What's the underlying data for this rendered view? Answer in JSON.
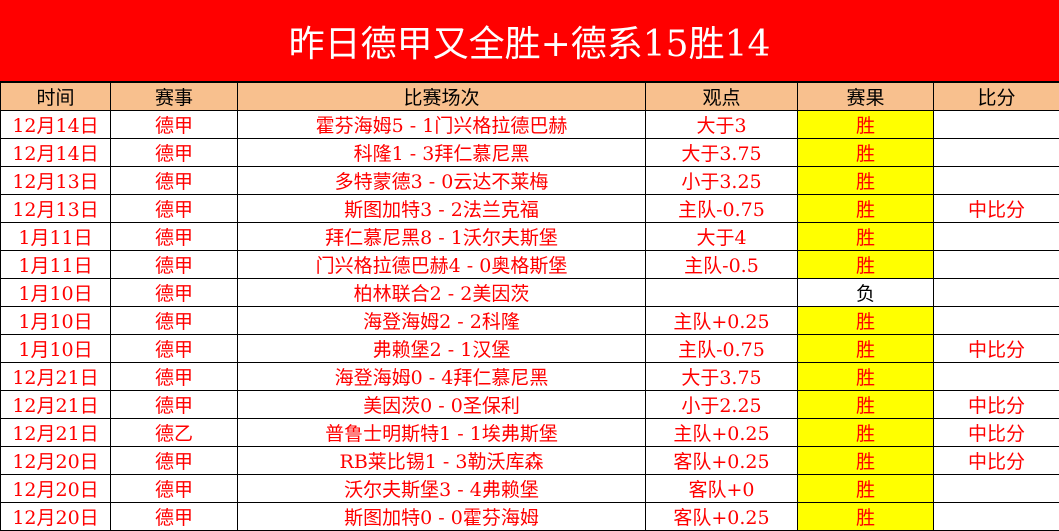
{
  "title": "昨日德甲又全胜+德系15胜14",
  "colors": {
    "title_bg": "#ff0000",
    "header_bg": "#f8c08e",
    "win_bg": "#ffff00",
    "text": "#ff0000"
  },
  "headers": [
    "时间",
    "赛事",
    "比赛场次",
    "观点",
    "赛果",
    "比分"
  ],
  "rows": [
    {
      "date": "12月14日",
      "league": "德甲",
      "match": "霍芬海姆5 - 1门兴格拉德巴赫",
      "tip": "大于3",
      "result": "胜",
      "score": ""
    },
    {
      "date": "12月14日",
      "league": "德甲",
      "match": "科隆1 - 3拜仁慕尼黑",
      "tip": "大于3.75",
      "result": "胜",
      "score": ""
    },
    {
      "date": "12月13日",
      "league": "德甲",
      "match": "多特蒙德3 - 0云达不莱梅",
      "tip": "小于3.25",
      "result": "胜",
      "score": ""
    },
    {
      "date": "12月13日",
      "league": "德甲",
      "match": "斯图加特3 - 2法兰克福",
      "tip": "主队-0.75",
      "result": "胜",
      "score": "中比分"
    },
    {
      "date": "1月11日",
      "league": "德甲",
      "match": "拜仁慕尼黑8 - 1沃尔夫斯堡",
      "tip": "大于4",
      "result": "胜",
      "score": ""
    },
    {
      "date": "1月11日",
      "league": "德甲",
      "match": "门兴格拉德巴赫4 - 0奥格斯堡",
      "tip": "主队-0.5",
      "result": "胜",
      "score": ""
    },
    {
      "date": "1月10日",
      "league": "德甲",
      "match": "柏林联合2 - 2美因茨",
      "tip": "",
      "result": "负",
      "score": ""
    },
    {
      "date": "1月10日",
      "league": "德甲",
      "match": "海登海姆2 - 2科隆",
      "tip": "主队+0.25",
      "result": "胜",
      "score": ""
    },
    {
      "date": "1月10日",
      "league": "德甲",
      "match": "弗赖堡2 - 1汉堡",
      "tip": "主队-0.75",
      "result": "胜",
      "score": "中比分"
    },
    {
      "date": "12月21日",
      "league": "德甲",
      "match": "海登海姆0 - 4拜仁慕尼黑",
      "tip": "大于3.75",
      "result": "胜",
      "score": ""
    },
    {
      "date": "12月21日",
      "league": "德甲",
      "match": "美因茨0 - 0圣保利",
      "tip": "小于2.25",
      "result": "胜",
      "score": "中比分"
    },
    {
      "date": "12月21日",
      "league": "德乙",
      "match": "普鲁士明斯特1 - 1埃弗斯堡",
      "tip": "主队+0.25",
      "result": "胜",
      "score": "中比分"
    },
    {
      "date": "12月20日",
      "league": "德甲",
      "match": "RB莱比锡1 - 3勒沃库森",
      "tip": "客队+0.25",
      "result": "胜",
      "score": "中比分"
    },
    {
      "date": "12月20日",
      "league": "德甲",
      "match": "沃尔夫斯堡3 - 4弗赖堡",
      "tip": "客队+0",
      "result": "胜",
      "score": ""
    },
    {
      "date": "12月20日",
      "league": "德甲",
      "match": "斯图加特0 - 0霍芬海姆",
      "tip": "客队+0.25",
      "result": "胜",
      "score": ""
    }
  ]
}
